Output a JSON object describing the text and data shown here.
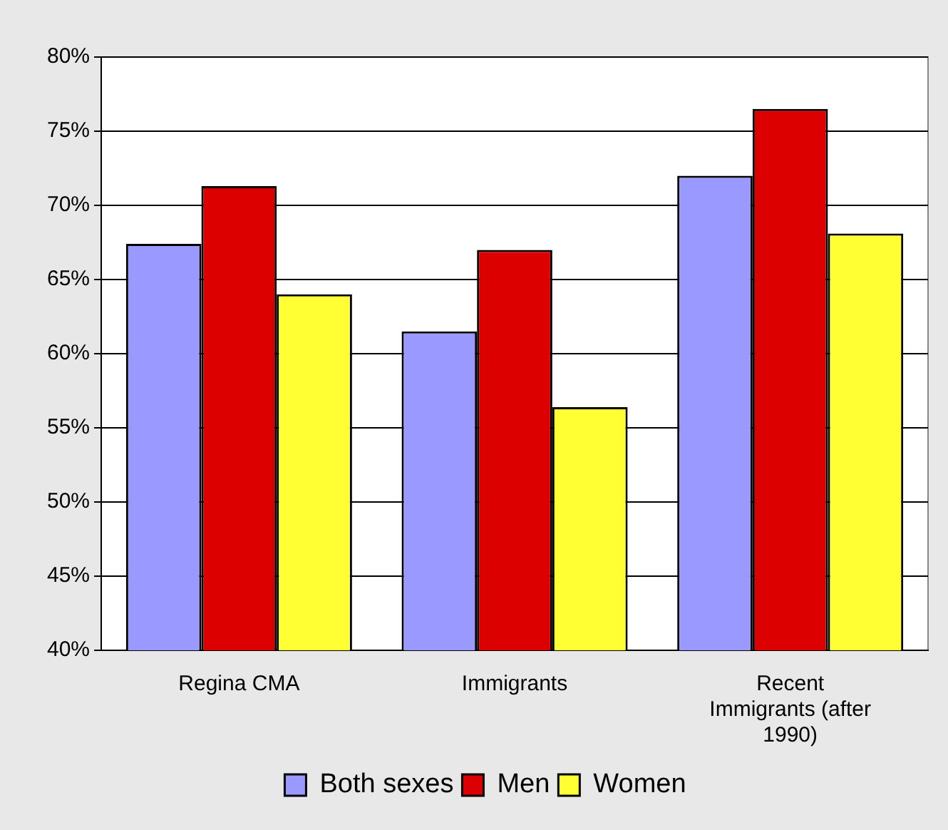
{
  "chart_data": {
    "type": "bar",
    "categories": [
      "Regina CMA",
      "Immigrants",
      "Recent Immigrants (after 1990)"
    ],
    "series": [
      {
        "name": "Both sexes",
        "color": "#9999ff",
        "values": [
          67.4,
          61.5,
          72.0
        ]
      },
      {
        "name": "Men",
        "color": "#dd0000",
        "values": [
          71.3,
          67.0,
          76.5
        ]
      },
      {
        "name": "Women",
        "color": "#ffff33",
        "values": [
          64.0,
          56.4,
          68.1
        ]
      }
    ],
    "ylim": [
      40,
      80
    ],
    "yticks": [
      {
        "value": 40,
        "label": "40%"
      },
      {
        "value": 45,
        "label": "45%"
      },
      {
        "value": 50,
        "label": "50%"
      },
      {
        "value": 55,
        "label": "55%"
      },
      {
        "value": 60,
        "label": "60%"
      },
      {
        "value": 65,
        "label": "65%"
      },
      {
        "value": 70,
        "label": "70%"
      },
      {
        "value": 75,
        "label": "75%"
      },
      {
        "value": 80,
        "label": "80%"
      }
    ],
    "grid": "y",
    "legend": "bottom"
  }
}
